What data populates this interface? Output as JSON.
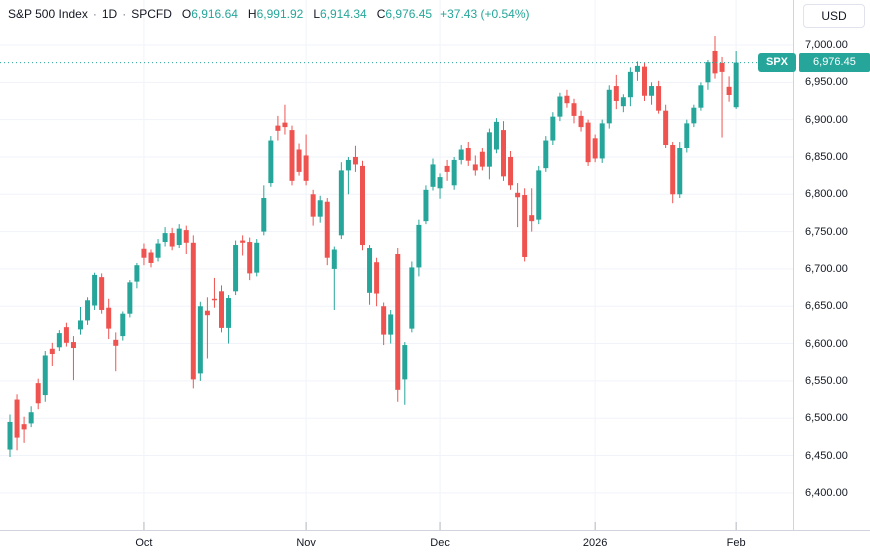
{
  "header": {
    "symbol_title": "S&P 500 Index",
    "separator": "·",
    "interval": "1D",
    "exchange": "SPCFD",
    "ohlc": [
      {
        "label": "O",
        "value": "6,916.64"
      },
      {
        "label": "H",
        "value": "6,991.92"
      },
      {
        "label": "L",
        "value": "6,914.34"
      },
      {
        "label": "C",
        "value": "6,976.45"
      }
    ],
    "change_text": "+37.43 (+0.54%)"
  },
  "currency_button": {
    "label": "USD"
  },
  "price_label": {
    "symbol": "SPX",
    "value": "6,976.45",
    "price": 6976.45
  },
  "price_axis": {
    "labels": [
      {
        "text": "7,000.00",
        "price": 7000
      },
      {
        "text": "6,950.00",
        "price": 6950
      },
      {
        "text": "6,900.00",
        "price": 6900
      },
      {
        "text": "6,850.00",
        "price": 6850
      },
      {
        "text": "6,800.00",
        "price": 6800
      },
      {
        "text": "6,750.00",
        "price": 6750
      },
      {
        "text": "6,700.00",
        "price": 6700
      },
      {
        "text": "6,650.00",
        "price": 6650
      },
      {
        "text": "6,600.00",
        "price": 6600
      },
      {
        "text": "6,550.00",
        "price": 6550
      },
      {
        "text": "6,500.00",
        "price": 6500
      },
      {
        "text": "6,450.00",
        "price": 6450
      },
      {
        "text": "6,400.00",
        "price": 6400
      }
    ]
  },
  "time_axis": {
    "labels": [
      {
        "text": "Oct",
        "candle_index": 19
      },
      {
        "text": "Nov",
        "candle_index": 42
      },
      {
        "text": "Dec",
        "candle_index": 61
      },
      {
        "text": "2026",
        "candle_index": 83
      },
      {
        "text": "Feb",
        "candle_index": 103
      }
    ]
  },
  "colors": {
    "up": "#26a69a",
    "down": "#ef5350",
    "grid": "#f0f3fa",
    "axis_text": "#131722",
    "border": "#d1d4dc",
    "background": "#ffffff",
    "last_price_line": "#26a69a"
  },
  "chart_data": {
    "type": "candlestick",
    "title": "S&P 500 Index, 1D, SPCFD, USD",
    "y_range": [
      6400,
      7015
    ],
    "grid": true,
    "last_price": 6976.45,
    "columns": [
      "date",
      "open",
      "high",
      "low",
      "close"
    ],
    "candles": [
      [
        "2025-09-04",
        6458,
        6505,
        6448,
        6495
      ],
      [
        "2025-09-05",
        6525,
        6532,
        6457,
        6474
      ],
      [
        "2025-09-08",
        6492,
        6502,
        6467,
        6485
      ],
      [
        "2025-09-09",
        6493,
        6516,
        6488,
        6508
      ],
      [
        "2025-09-10",
        6547,
        6553,
        6512,
        6520
      ],
      [
        "2025-09-11",
        6531,
        6590,
        6522,
        6584
      ],
      [
        "2025-09-12",
        6593,
        6601,
        6570,
        6586
      ],
      [
        "2025-09-15",
        6595,
        6618,
        6590,
        6614
      ],
      [
        "2025-09-16",
        6622,
        6628,
        6596,
        6601
      ],
      [
        "2025-09-17",
        6602,
        6610,
        6551,
        6594
      ],
      [
        "2025-09-18",
        6619,
        6649,
        6612,
        6631
      ],
      [
        "2025-09-19",
        6631,
        6662,
        6625,
        6658
      ],
      [
        "2025-09-22",
        6651,
        6695,
        6645,
        6692
      ],
      [
        "2025-09-23",
        6689,
        6694,
        6640,
        6645
      ],
      [
        "2025-09-24",
        6648,
        6660,
        6606,
        6620
      ],
      [
        "2025-09-25",
        6605,
        6615,
        6563,
        6597
      ],
      [
        "2025-09-26",
        6610,
        6643,
        6604,
        6640
      ],
      [
        "2025-09-29",
        6640,
        6685,
        6635,
        6682
      ],
      [
        "2025-09-30",
        6683,
        6708,
        6674,
        6705
      ],
      [
        "2025-10-01",
        6727,
        6734,
        6705,
        6715
      ],
      [
        "2025-10-02",
        6722,
        6726,
        6702,
        6708
      ],
      [
        "2025-10-03",
        6715,
        6740,
        6710,
        6734
      ],
      [
        "2025-10-06",
        6736,
        6756,
        6730,
        6748
      ],
      [
        "2025-10-07",
        6748,
        6755,
        6725,
        6730
      ],
      [
        "2025-10-08",
        6732,
        6760,
        6728,
        6754
      ],
      [
        "2025-10-09",
        6752,
        6758,
        6720,
        6735
      ],
      [
        "2025-10-10",
        6735,
        6745,
        6540,
        6552
      ],
      [
        "2025-10-13",
        6560,
        6656,
        6550,
        6650
      ],
      [
        "2025-10-14",
        6644,
        6662,
        6580,
        6638
      ],
      [
        "2025-10-15",
        6660,
        6688,
        6648,
        6658
      ],
      [
        "2025-10-16",
        6670,
        6678,
        6615,
        6621
      ],
      [
        "2025-10-17",
        6621,
        6665,
        6600,
        6661
      ],
      [
        "2025-10-20",
        6670,
        6738,
        6665,
        6732
      ],
      [
        "2025-10-21",
        6738,
        6745,
        6718,
        6735
      ],
      [
        "2025-10-22",
        6736,
        6742,
        6685,
        6694
      ],
      [
        "2025-10-23",
        6695,
        6740,
        6690,
        6735
      ],
      [
        "2025-10-24",
        6750,
        6812,
        6745,
        6795
      ],
      [
        "2025-10-27",
        6815,
        6878,
        6810,
        6872
      ],
      [
        "2025-10-28",
        6892,
        6905,
        6872,
        6885
      ],
      [
        "2025-10-29",
        6896,
        6920,
        6880,
        6890
      ],
      [
        "2025-10-30",
        6886,
        6892,
        6812,
        6818
      ],
      [
        "2025-10-31",
        6860,
        6868,
        6825,
        6830
      ],
      [
        "2025-11-03",
        6852,
        6880,
        6812,
        6818
      ],
      [
        "2025-11-04",
        6800,
        6806,
        6758,
        6770
      ],
      [
        "2025-11-05",
        6770,
        6798,
        6762,
        6792
      ],
      [
        "2025-11-06",
        6790,
        6795,
        6705,
        6715
      ],
      [
        "2025-11-07",
        6700,
        6730,
        6645,
        6726
      ],
      [
        "2025-11-10",
        6745,
        6843,
        6740,
        6832
      ],
      [
        "2025-11-11",
        6832,
        6850,
        6800,
        6846
      ],
      [
        "2025-11-12",
        6850,
        6865,
        6830,
        6840
      ],
      [
        "2025-11-13",
        6838,
        6845,
        6725,
        6732
      ],
      [
        "2025-11-14",
        6668,
        6732,
        6652,
        6728
      ],
      [
        "2025-11-17",
        6709,
        6715,
        6650,
        6667
      ],
      [
        "2025-11-18",
        6650,
        6655,
        6598,
        6612
      ],
      [
        "2025-11-19",
        6612,
        6645,
        6600,
        6639
      ],
      [
        "2025-11-20",
        6720,
        6728,
        6522,
        6538
      ],
      [
        "2025-11-21",
        6552,
        6602,
        6518,
        6598
      ],
      [
        "2025-11-24",
        6620,
        6710,
        6615,
        6702
      ],
      [
        "2025-11-25",
        6702,
        6766,
        6690,
        6759
      ],
      [
        "2025-11-26",
        6764,
        6812,
        6760,
        6806
      ],
      [
        "2025-11-28",
        6810,
        6848,
        6805,
        6840
      ],
      [
        "2025-12-01",
        6808,
        6828,
        6794,
        6823
      ],
      [
        "2025-12-02",
        6838,
        6846,
        6818,
        6830
      ],
      [
        "2025-12-03",
        6812,
        6850,
        6806,
        6846
      ],
      [
        "2025-12-04",
        6846,
        6866,
        6840,
        6860
      ],
      [
        "2025-12-05",
        6862,
        6870,
        6838,
        6845
      ],
      [
        "2025-12-08",
        6840,
        6852,
        6825,
        6832
      ],
      [
        "2025-12-09",
        6857,
        6862,
        6832,
        6837
      ],
      [
        "2025-12-10",
        6837,
        6888,
        6820,
        6883
      ],
      [
        "2025-12-11",
        6860,
        6902,
        6855,
        6897
      ],
      [
        "2025-12-12",
        6886,
        6898,
        6818,
        6824
      ],
      [
        "2025-12-15",
        6850,
        6858,
        6806,
        6812
      ],
      [
        "2025-12-16",
        6802,
        6815,
        6756,
        6796
      ],
      [
        "2025-12-17",
        6799,
        6808,
        6710,
        6716
      ],
      [
        "2025-12-18",
        6772,
        6808,
        6750,
        6764
      ],
      [
        "2025-12-19",
        6766,
        6838,
        6760,
        6832
      ],
      [
        "2025-12-22",
        6835,
        6878,
        6830,
        6872
      ],
      [
        "2025-12-23",
        6872,
        6910,
        6866,
        6904
      ],
      [
        "2025-12-24",
        6904,
        6936,
        6898,
        6931
      ],
      [
        "2025-12-26",
        6932,
        6940,
        6916,
        6922
      ],
      [
        "2025-12-29",
        6922,
        6928,
        6895,
        6905
      ],
      [
        "2025-12-30",
        6905,
        6912,
        6884,
        6890
      ],
      [
        "2025-12-31",
        6896,
        6900,
        6838,
        6843
      ],
      [
        "2026-01-02",
        6875,
        6880,
        6843,
        6848
      ],
      [
        "2026-01-05",
        6848,
        6900,
        6842,
        6895
      ],
      [
        "2026-01-06",
        6895,
        6946,
        6888,
        6940
      ],
      [
        "2026-01-07",
        6945,
        6960,
        6914,
        6925
      ],
      [
        "2026-01-08",
        6918,
        6934,
        6910,
        6930
      ],
      [
        "2026-01-09",
        6930,
        6970,
        6918,
        6964
      ],
      [
        "2026-01-12",
        6964,
        6978,
        6952,
        6972
      ],
      [
        "2026-01-13",
        6971,
        6976,
        6925,
        6932
      ],
      [
        "2026-01-14",
        6932,
        6950,
        6920,
        6945
      ],
      [
        "2026-01-15",
        6945,
        6952,
        6908,
        6912
      ],
      [
        "2026-01-16",
        6912,
        6920,
        6862,
        6866
      ],
      [
        "2026-01-20",
        6866,
        6870,
        6788,
        6800
      ],
      [
        "2026-01-21",
        6800,
        6870,
        6795,
        6862
      ],
      [
        "2026-01-22",
        6862,
        6900,
        6856,
        6895
      ],
      [
        "2026-01-23",
        6895,
        6920,
        6890,
        6916
      ],
      [
        "2026-01-26",
        6916,
        6950,
        6912,
        6946
      ],
      [
        "2026-01-27",
        6950,
        6980,
        6940,
        6977
      ],
      [
        "2026-01-28",
        6992,
        7012,
        6955,
        6962
      ],
      [
        "2026-01-29",
        6976,
        6984,
        6876,
        6964
      ],
      [
        "2026-01-30",
        6944,
        6958,
        6924,
        6933
      ],
      [
        "2026-02-02",
        6916.64,
        6991.92,
        6914.34,
        6976.45
      ]
    ]
  }
}
